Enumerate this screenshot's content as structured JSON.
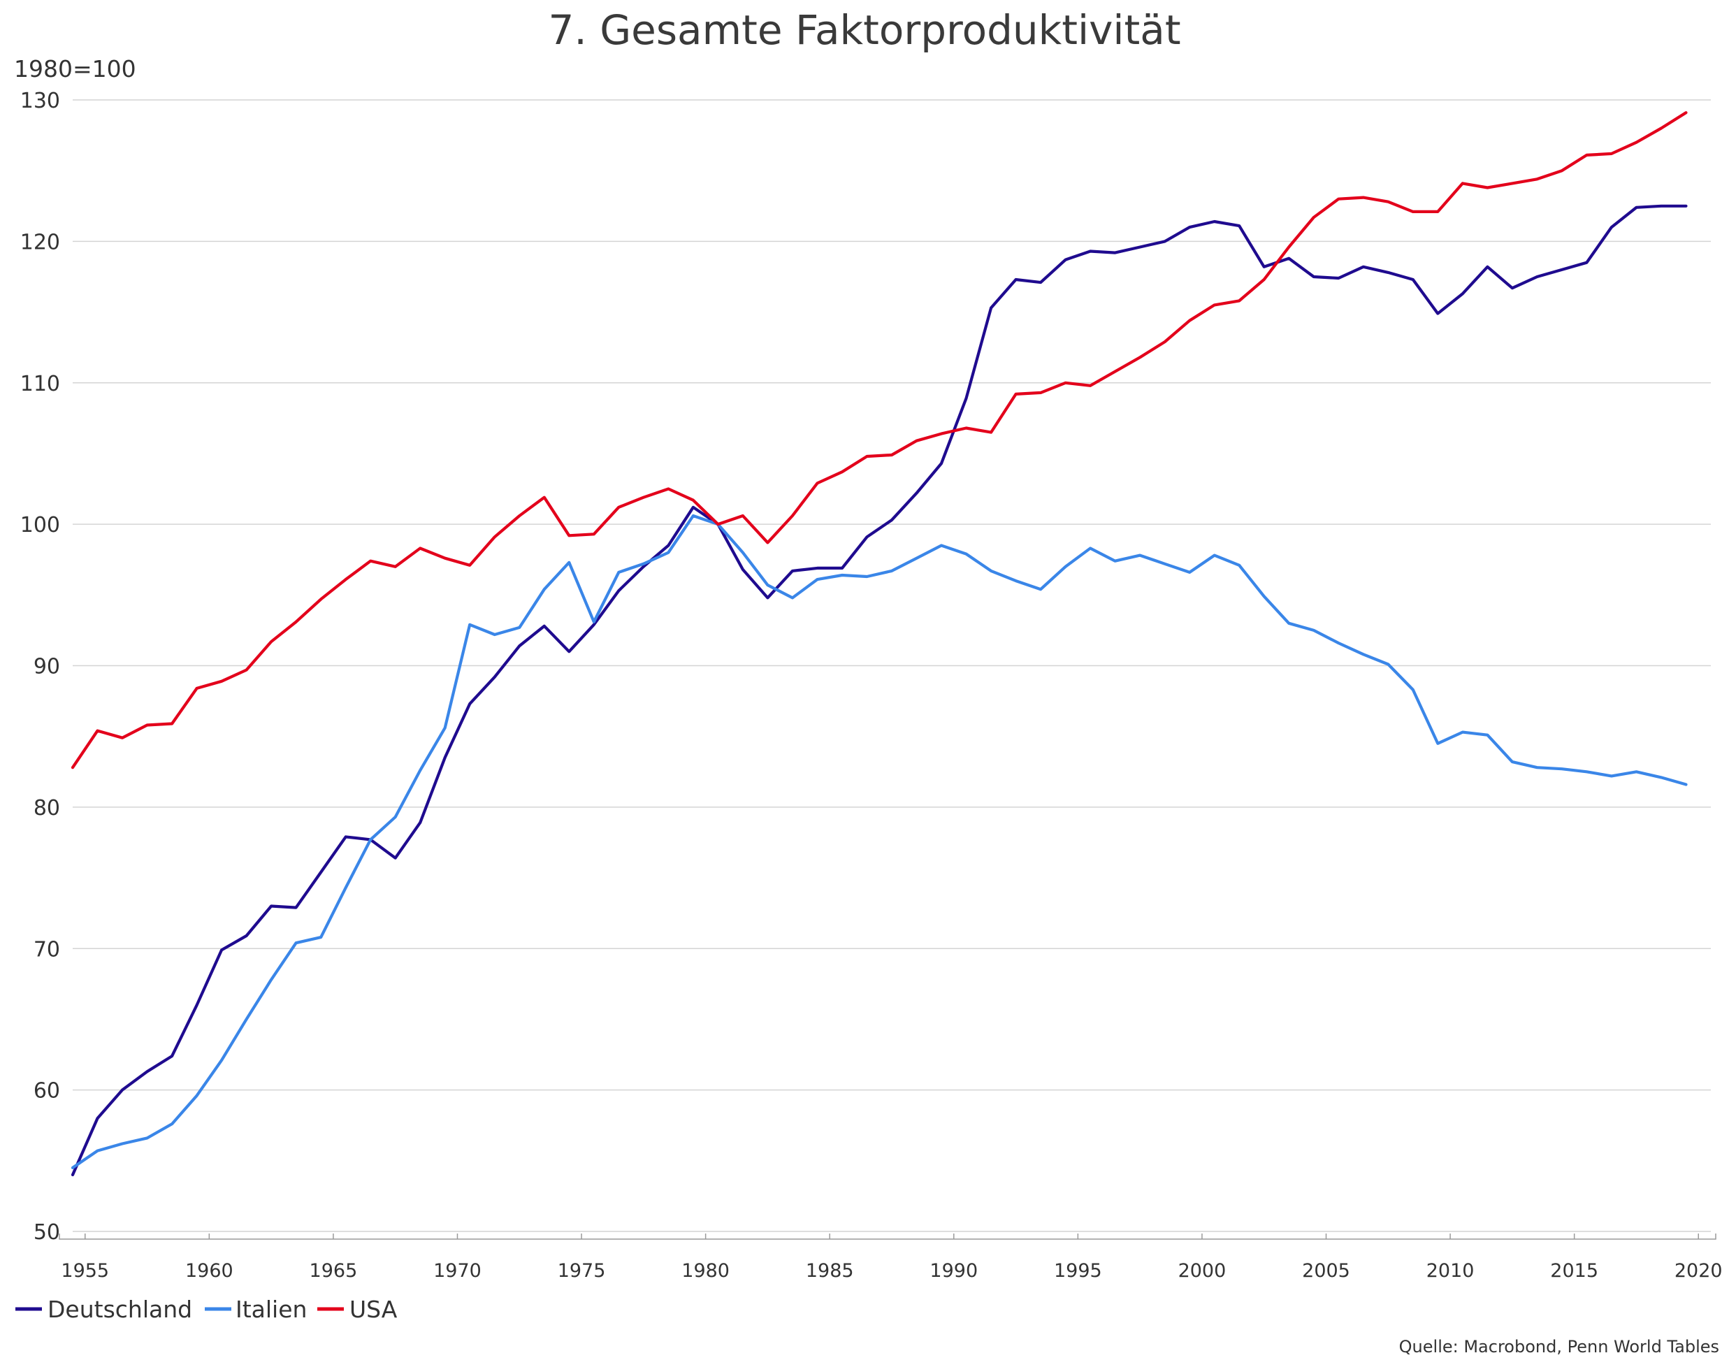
{
  "chart_data": {
    "type": "line",
    "title": "7. Gesamte Faktorproduktivität",
    "ylabel": "1980=100",
    "xlabel": "",
    "ylim": [
      50,
      130
    ],
    "xlim": [
      1954.5,
      2020.5
    ],
    "yticks": [
      50,
      60,
      70,
      80,
      90,
      100,
      110,
      120,
      130
    ],
    "xticks": [
      1955,
      1960,
      1965,
      1970,
      1975,
      1980,
      1985,
      1990,
      1995,
      2000,
      2005,
      2010,
      2015,
      2020
    ],
    "grid": true,
    "legend_position": "bottom-left",
    "source": "Quelle: Macrobond, Penn World Tables",
    "x": [
      1954,
      1955,
      1956,
      1957,
      1958,
      1959,
      1960,
      1961,
      1962,
      1963,
      1964,
      1965,
      1966,
      1967,
      1968,
      1969,
      1970,
      1971,
      1972,
      1973,
      1974,
      1975,
      1976,
      1977,
      1978,
      1979,
      1980,
      1981,
      1982,
      1983,
      1984,
      1985,
      1986,
      1987,
      1988,
      1989,
      1990,
      1991,
      1992,
      1993,
      1994,
      1995,
      1996,
      1997,
      1998,
      1999,
      2000,
      2001,
      2002,
      2003,
      2004,
      2005,
      2006,
      2007,
      2008,
      2009,
      2010,
      2011,
      2012,
      2013,
      2014,
      2015,
      2016,
      2017,
      2018,
      2019
    ],
    "series": [
      {
        "name": "Deutschland",
        "color": "#1f0b8f",
        "values": [
          54.0,
          58.0,
          60.0,
          61.3,
          62.4,
          66.0,
          69.9,
          70.9,
          73.0,
          72.9,
          75.4,
          77.9,
          77.7,
          76.4,
          78.9,
          83.5,
          87.3,
          89.2,
          91.4,
          92.8,
          91.0,
          92.9,
          95.3,
          97.0,
          98.5,
          101.2,
          100.0,
          96.8,
          94.8,
          96.7,
          96.9,
          96.9,
          99.1,
          100.3,
          102.2,
          104.3,
          108.9,
          115.3,
          117.3,
          117.1,
          118.7,
          119.3,
          119.2,
          119.6,
          120.0,
          121.0,
          121.4,
          121.1,
          118.2,
          118.8,
          117.5,
          117.4,
          118.2,
          117.8,
          117.3,
          114.9,
          116.3,
          118.2,
          116.7,
          117.5,
          118.0,
          118.5,
          121.0,
          122.4,
          122.5,
          122.5
        ]
      },
      {
        "name": "Italien",
        "color": "#3a86e8",
        "values": [
          54.5,
          55.7,
          56.2,
          56.6,
          57.6,
          59.6,
          62.1,
          65.0,
          67.8,
          70.4,
          70.8,
          74.3,
          77.7,
          79.3,
          82.6,
          85.6,
          92.9,
          92.2,
          92.7,
          95.4,
          97.3,
          93.1,
          96.6,
          97.2,
          98.0,
          100.6,
          100.0,
          98.0,
          95.7,
          94.8,
          96.1,
          96.4,
          96.3,
          96.7,
          97.6,
          98.5,
          97.9,
          96.7,
          96.0,
          95.4,
          97.0,
          98.3,
          97.4,
          97.8,
          97.2,
          96.6,
          97.8,
          97.1,
          94.9,
          93.0,
          92.5,
          91.6,
          90.8,
          90.1,
          88.3,
          84.5,
          85.3,
          85.1,
          83.2,
          82.8,
          82.7,
          82.5,
          82.2,
          82.5,
          82.1,
          81.6
        ]
      },
      {
        "name": "USA",
        "color": "#e3001b",
        "values": [
          82.8,
          85.4,
          84.9,
          85.8,
          85.9,
          88.4,
          88.9,
          89.7,
          91.7,
          93.1,
          94.7,
          96.1,
          97.4,
          97.0,
          98.3,
          97.6,
          97.1,
          99.1,
          100.6,
          101.9,
          99.2,
          99.3,
          101.2,
          101.9,
          102.5,
          101.7,
          100.0,
          100.6,
          98.7,
          100.6,
          102.9,
          103.7,
          104.8,
          104.9,
          105.9,
          106.4,
          106.8,
          106.5,
          109.2,
          109.3,
          110.0,
          109.8,
          110.8,
          111.8,
          112.9,
          114.4,
          115.5,
          115.8,
          117.3,
          119.6,
          121.7,
          123.0,
          123.1,
          122.8,
          122.1,
          122.1,
          124.1,
          123.8,
          124.1,
          124.4,
          125.0,
          126.1,
          126.2,
          127.0,
          128.0,
          129.1
        ]
      }
    ]
  }
}
